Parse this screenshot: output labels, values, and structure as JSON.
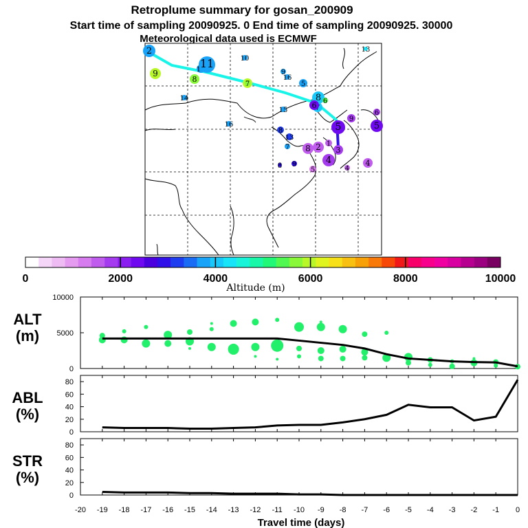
{
  "header": {
    "title": "Retroplume summary for gosan_200909",
    "line2": "Start time of sampling 20090925.    0     End time of sampling 20090925. 30000",
    "line3": "Meteorological data used is ECMWF"
  },
  "colorbar": {
    "label": "Altitude (m)",
    "ticks": [
      "0",
      "2000",
      "4000",
      "6000",
      "8000",
      "10000"
    ],
    "colors": [
      "#ffffff",
      "#f5d6f8",
      "#eebbf3",
      "#e49bf0",
      "#d77cef",
      "#c05cee",
      "#a53bee",
      "#8a1df0",
      "#6f0af0",
      "#4b00e0",
      "#2f10e8",
      "#1e3cf0",
      "#1a6cf4",
      "#18a2f8",
      "#18c8fa",
      "#18e4f8",
      "#18f4d8",
      "#18f8a8",
      "#22f878",
      "#50f850",
      "#88f838",
      "#b8f828",
      "#e0f420",
      "#f8e018",
      "#f8c010",
      "#f8a008",
      "#f87808",
      "#f84808",
      "#f01818",
      "#f8006a",
      "#f8008c",
      "#f000a0",
      "#d800a0",
      "#b80090",
      "#9a0080",
      "#780060"
    ]
  },
  "map_labels": [
    {
      "t": "2",
      "c": "#18a2f8"
    },
    {
      "t": "9",
      "c": "#b8f828"
    },
    {
      "t": "10",
      "c": "#18a2f8"
    },
    {
      "t": "11",
      "c": "#18a2f8"
    },
    {
      "t": "8",
      "c": "#88f838"
    },
    {
      "t": "10",
      "c": "#18a2f8"
    },
    {
      "t": "9",
      "c": "#b8f828"
    },
    {
      "t": "7",
      "c": "#88f838"
    },
    {
      "t": "16",
      "c": "#18a2f8"
    },
    {
      "t": "9",
      "c": "#18a2f8"
    },
    {
      "t": "5",
      "c": "#18a2f8"
    },
    {
      "t": "8",
      "c": "#18c8fa"
    },
    {
      "t": "6",
      "c": "#50f850"
    },
    {
      "t": "7",
      "c": "#18c8fa"
    },
    {
      "t": "13",
      "c": "#18e4f8"
    },
    {
      "t": "14",
      "c": "#18a2f8"
    },
    {
      "t": "15",
      "c": "#18a2f8"
    },
    {
      "t": "16",
      "c": "#18a2f8"
    },
    {
      "t": "5",
      "c": "#6f0af0"
    },
    {
      "t": "9",
      "c": "#a53bee"
    },
    {
      "t": "6",
      "c": "#a53bee"
    },
    {
      "t": "5",
      "c": "#6f0af0"
    },
    {
      "t": "6",
      "c": "#6f0af0"
    },
    {
      "t": "8",
      "c": "#1e3cf0"
    },
    {
      "t": "13",
      "c": "#1e3cf0"
    },
    {
      "t": "7",
      "c": "#18a2f8"
    },
    {
      "t": "8",
      "c": "#c05cee"
    },
    {
      "t": "2",
      "c": "#c05cee"
    },
    {
      "t": "1",
      "c": "#c05cee"
    },
    {
      "t": "3",
      "c": "#a53bee"
    },
    {
      "t": "4",
      "c": "#c05cee"
    },
    {
      "t": "5",
      "c": "#d77cef"
    },
    {
      "t": "4",
      "c": "#a53bee"
    },
    {
      "t": "4",
      "c": "#c05cee"
    },
    {
      "t": "8",
      "c": "#2f10e8"
    },
    {
      "t": "9",
      "c": "#2f10e8"
    }
  ],
  "chart_data": [
    {
      "type": "scatter",
      "name": "ALT",
      "title_top": "ALT",
      "title_bottom": "(m)",
      "ylim": [
        0,
        10000
      ],
      "yticks": [
        "0",
        "5000",
        "10000"
      ],
      "xlim": [
        -20,
        0
      ],
      "line": {
        "x": [
          -19,
          -18,
          -17,
          -16,
          -15,
          -14,
          -13,
          -12,
          -11,
          -10,
          -9,
          -8,
          -7,
          -6,
          -5,
          -4,
          -3,
          -2,
          -1,
          0
        ],
        "y": [
          4200,
          4200,
          4200,
          4200,
          4200,
          4200,
          4200,
          4200,
          4200,
          3900,
          3600,
          3300,
          2800,
          2000,
          1400,
          1200,
          1000,
          900,
          850,
          300
        ]
      },
      "points": [
        {
          "x": -19,
          "y": 4000,
          "s": 5
        },
        {
          "x": -19,
          "y": 4600,
          "s": 4
        },
        {
          "x": -18,
          "y": 4000,
          "s": 5
        },
        {
          "x": -18,
          "y": 5200,
          "s": 3
        },
        {
          "x": -17,
          "y": 3500,
          "s": 6
        },
        {
          "x": -17,
          "y": 5800,
          "s": 3
        },
        {
          "x": -16,
          "y": 3500,
          "s": 5
        },
        {
          "x": -16,
          "y": 4700,
          "s": 6
        },
        {
          "x": -15,
          "y": 3800,
          "s": 6
        },
        {
          "x": -15,
          "y": 5100,
          "s": 4
        },
        {
          "x": -15,
          "y": 2800,
          "s": 2
        },
        {
          "x": -14,
          "y": 3000,
          "s": 6
        },
        {
          "x": -14,
          "y": 6300,
          "s": 2
        },
        {
          "x": -14,
          "y": 5500,
          "s": 3
        },
        {
          "x": -13,
          "y": 2700,
          "s": 8
        },
        {
          "x": -13,
          "y": 6300,
          "s": 5
        },
        {
          "x": -12,
          "y": 3000,
          "s": 6
        },
        {
          "x": -12,
          "y": 6500,
          "s": 5
        },
        {
          "x": -12,
          "y": 1700,
          "s": 2
        },
        {
          "x": -11,
          "y": 3200,
          "s": 9
        },
        {
          "x": -11,
          "y": 6800,
          "s": 3
        },
        {
          "x": -11,
          "y": 1300,
          "s": 2
        },
        {
          "x": -10,
          "y": 5800,
          "s": 7
        },
        {
          "x": -10,
          "y": 2800,
          "s": 4
        },
        {
          "x": -10,
          "y": 1700,
          "s": 3
        },
        {
          "x": -9,
          "y": 5800,
          "s": 6
        },
        {
          "x": -9,
          "y": 2500,
          "s": 5
        },
        {
          "x": -9,
          "y": 1400,
          "s": 4
        },
        {
          "x": -9,
          "y": 6500,
          "s": 2
        },
        {
          "x": -8,
          "y": 5500,
          "s": 6
        },
        {
          "x": -8,
          "y": 2700,
          "s": 5
        },
        {
          "x": -8,
          "y": 1400,
          "s": 4
        },
        {
          "x": -7,
          "y": 4800,
          "s": 4
        },
        {
          "x": -7,
          "y": 2300,
          "s": 5
        },
        {
          "x": -7,
          "y": 1500,
          "s": 4
        },
        {
          "x": -6,
          "y": 1500,
          "s": 6
        },
        {
          "x": -6,
          "y": 5000,
          "s": 3
        },
        {
          "x": -5,
          "y": 1600,
          "s": 6
        },
        {
          "x": -5,
          "y": 800,
          "s": 4
        },
        {
          "x": -4,
          "y": 1200,
          "s": 4
        },
        {
          "x": -4,
          "y": 500,
          "s": 3
        },
        {
          "x": -3,
          "y": 1000,
          "s": 3
        },
        {
          "x": -3,
          "y": 300,
          "s": 4
        },
        {
          "x": -2,
          "y": 800,
          "s": 5
        },
        {
          "x": -2,
          "y": 1400,
          "s": 2
        },
        {
          "x": -1,
          "y": 900,
          "s": 4
        },
        {
          "x": -1,
          "y": 400,
          "s": 3
        },
        {
          "x": 0,
          "y": 250,
          "s": 4
        }
      ]
    },
    {
      "type": "line",
      "name": "ABL",
      "title_top": "ABL",
      "title_bottom": "(%)",
      "ylim": [
        0,
        90
      ],
      "yticks": [
        "0",
        "20",
        "40",
        "60",
        "80"
      ],
      "xlim": [
        -20,
        0
      ],
      "x": [
        -19,
        -18,
        -17,
        -16,
        -15,
        -14,
        -13,
        -12,
        -11,
        -10,
        -9,
        -8,
        -7,
        -6,
        -5,
        -4,
        -3,
        -2,
        -1,
        0
      ],
      "y": [
        7,
        6,
        6,
        6,
        5,
        5,
        6,
        7,
        10,
        11,
        11,
        15,
        20,
        27,
        43,
        39,
        39,
        18,
        24,
        83
      ]
    },
    {
      "type": "line",
      "name": "STR",
      "title_top": "STR",
      "title_bottom": "(%)",
      "ylim": [
        0,
        90
      ],
      "yticks": [
        "0",
        "20",
        "40",
        "60",
        "80"
      ],
      "xlim": [
        -20,
        0
      ],
      "x": [
        -19,
        -18,
        -17,
        -16,
        -15,
        -14,
        -13,
        -12,
        -11,
        -10,
        -9,
        -8,
        -7,
        -6,
        -5,
        -4,
        -3,
        -2,
        -1,
        0
      ],
      "y": [
        5,
        4,
        4,
        4,
        3,
        3,
        2,
        2,
        2,
        1,
        1,
        0,
        0,
        0,
        0,
        0,
        0,
        0,
        0,
        0
      ]
    }
  ],
  "xaxis": {
    "ticks": [
      "-20",
      "-19",
      "-18",
      "-17",
      "-16",
      "-15",
      "-14",
      "-13",
      "-12",
      "-11",
      "-10",
      "-9",
      "-8",
      "-7",
      "-6",
      "-5",
      "-4",
      "-3",
      "-2",
      "-1",
      "0"
    ],
    "label": "Travel time (days)"
  }
}
